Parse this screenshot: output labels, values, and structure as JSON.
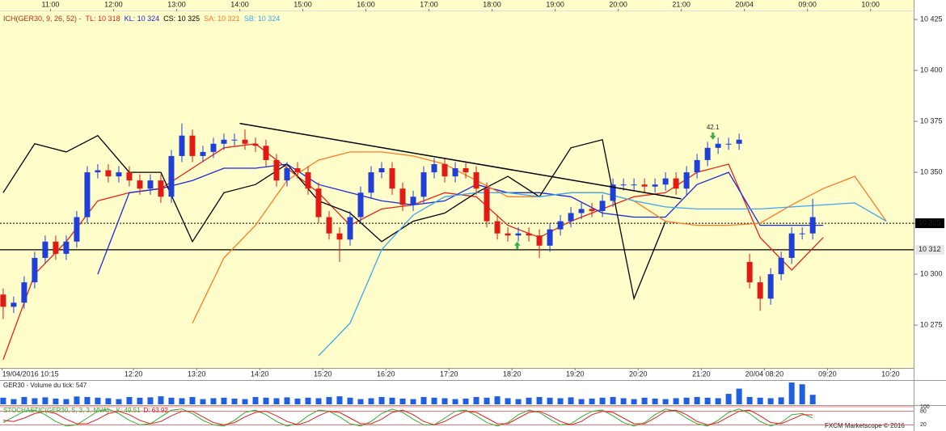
{
  "chart_data": [
    {
      "type": "candlestick",
      "legend_title": "ICH(GER30, 9, 26, 52) -",
      "legend_title_color": "#b03010",
      "up_color": "#1f3fd8",
      "down_color": "#e01a14",
      "open": [
        10290,
        10284,
        10286,
        10296,
        10308,
        10316,
        10310,
        10316,
        10328,
        10350,
        10351,
        10348,
        10350,
        10346,
        10342,
        10346,
        10338,
        10358,
        10368,
        10358,
        10360,
        10364,
        10366,
        10366,
        10364,
        10363,
        10356,
        10346,
        10352,
        10350,
        10342,
        10328,
        10320,
        10317,
        10328,
        10340,
        10350,
        10352,
        10342,
        10334,
        10338,
        10350,
        10354,
        10348,
        10352,
        10350,
        10342,
        10326,
        10320,
        10319,
        10320,
        10319,
        10314,
        10322,
        10326,
        10330,
        10332,
        10331,
        10336,
        10344,
        10344,
        10344,
        10343,
        10344,
        10347,
        10342,
        10350,
        10356,
        10362,
        10364,
        10364,
        10306,
        10296,
        10288,
        10300,
        10308,
        10320,
        10320
      ],
      "high": [
        10293,
        10289,
        10299,
        10311,
        10319,
        10319,
        10319,
        10331,
        10353,
        10354,
        10354,
        10353,
        10353,
        10349,
        10349,
        10349,
        10361,
        10374,
        10371,
        10363,
        10367,
        10369,
        10369,
        10371,
        10367,
        10366,
        10359,
        10355,
        10355,
        10353,
        10345,
        10331,
        10323,
        10331,
        10343,
        10353,
        10355,
        10355,
        10345,
        10341,
        10353,
        10357,
        10357,
        10355,
        10355,
        10353,
        10345,
        10329,
        10323,
        10323,
        10323,
        10322,
        10325,
        10329,
        10333,
        10335,
        10335,
        10339,
        10347,
        10347,
        10347,
        10347,
        10347,
        10350,
        10350,
        10353,
        10359,
        10365,
        10367,
        10367,
        10369,
        10310,
        10299,
        10303,
        10311,
        10323,
        10323,
        10337
      ],
      "low": [
        10278,
        10281,
        10283,
        10293,
        10305,
        10307,
        10307,
        10313,
        10325,
        10347,
        10345,
        10345,
        10343,
        10339,
        10339,
        10335,
        10335,
        10355,
        10355,
        10355,
        10357,
        10361,
        10363,
        10361,
        10360,
        10353,
        10343,
        10343,
        10347,
        10339,
        10325,
        10317,
        10306,
        10314,
        10325,
        10337,
        10347,
        10339,
        10331,
        10331,
        10335,
        10347,
        10345,
        10345,
        10347,
        10339,
        10323,
        10317,
        10316,
        10316,
        10316,
        10308,
        10311,
        10319,
        10323,
        10327,
        10328,
        10328,
        10333,
        10341,
        10341,
        10340,
        10340,
        10341,
        10339,
        10339,
        10347,
        10353,
        10359,
        10361,
        10361,
        10293,
        10282,
        10285,
        10297,
        10305,
        10317,
        10317
      ],
      "close": [
        10284,
        10286,
        10296,
        10308,
        10316,
        10310,
        10316,
        10328,
        10350,
        10351,
        10348,
        10350,
        10346,
        10342,
        10346,
        10338,
        10358,
        10368,
        10358,
        10360,
        10364,
        10366,
        10366,
        10364,
        10363,
        10356,
        10346,
        10352,
        10350,
        10342,
        10328,
        10320,
        10317,
        10328,
        10340,
        10350,
        10352,
        10342,
        10334,
        10338,
        10350,
        10354,
        10348,
        10352,
        10350,
        10342,
        10326,
        10320,
        10319,
        10320,
        10319,
        10314,
        10322,
        10326,
        10330,
        10332,
        10331,
        10336,
        10344,
        10344,
        10344,
        10343,
        10344,
        10347,
        10342,
        10350,
        10356,
        10362,
        10364,
        10364,
        10366,
        10296,
        10288,
        10300,
        10308,
        10320,
        10320,
        10328
      ],
      "series": [
        {
          "name": "TL: 10 318",
          "color": "#e8221c",
          "x": [
            0,
            3,
            6,
            9,
            12,
            15,
            18,
            21,
            24,
            27,
            30,
            33,
            36,
            39,
            42,
            45,
            48,
            51,
            54,
            57,
            60,
            63,
            66,
            69,
            72,
            75,
            78,
            81,
            84
          ],
          "values": [
            10258,
            10300,
            10316,
            10336,
            10340,
            10342,
            10352,
            10362,
            10364,
            10352,
            10340,
            10324,
            10332,
            10334,
            10340,
            10338,
            10324,
            10318,
            10326,
            10332,
            10338,
            10340,
            10350,
            10354,
            10318,
            10302,
            10318,
            null,
            null
          ]
        },
        {
          "name": "KL: 10 324",
          "color": "#1a2ad8",
          "x": [
            0,
            3,
            6,
            9,
            12,
            15,
            18,
            21,
            24,
            27,
            30,
            33,
            36,
            39,
            42,
            45,
            48,
            51,
            54,
            57,
            60,
            63,
            66,
            69,
            72,
            75,
            78,
            81,
            84
          ],
          "values": [
            null,
            null,
            null,
            10300,
            10340,
            10342,
            10346,
            10352,
            10352,
            10354,
            10344,
            10340,
            10336,
            10334,
            10336,
            10344,
            10340,
            10340,
            10338,
            10330,
            10328,
            10328,
            10344,
            10350,
            10324,
            10324,
            10324,
            null,
            null
          ]
        },
        {
          "name": "CS: 10 325",
          "color": "#000000",
          "x": [
            0,
            3,
            6,
            9,
            12,
            15,
            18,
            21,
            24,
            27,
            30,
            33,
            36,
            39,
            42,
            45,
            48,
            51,
            54,
            57,
            60,
            63,
            66,
            69,
            72,
            75,
            78,
            81,
            84
          ],
          "values": [
            10340,
            10364,
            10360,
            10368,
            10350,
            10350,
            10316,
            10340,
            10344,
            10354,
            10336,
            10330,
            10316,
            10326,
            10330,
            10340,
            10348,
            10338,
            10362,
            10366,
            10288,
            10326,
            null,
            null,
            null,
            null,
            null,
            null,
            null
          ]
        },
        {
          "name": "SA: 10 321",
          "color": "#ff7a26",
          "x": [
            0,
            3,
            6,
            9,
            12,
            15,
            18,
            21,
            24,
            27,
            30,
            33,
            36,
            39,
            42,
            45,
            48,
            51,
            54,
            57,
            60,
            63,
            66,
            69,
            72,
            75,
            78,
            81,
            84
          ],
          "values": [
            null,
            null,
            null,
            null,
            null,
            null,
            10276,
            10308,
            10324,
            10346,
            10356,
            10360,
            10360,
            10358,
            10354,
            10346,
            10338,
            10338,
            10340,
            10340,
            10336,
            10326,
            10324,
            10324,
            10325,
            10334,
            10342,
            10348,
            10326
          ]
        },
        {
          "name": "SB: 10 324",
          "color": "#3aa8f0",
          "x": [
            0,
            3,
            6,
            9,
            12,
            15,
            18,
            21,
            24,
            27,
            30,
            33,
            36,
            39,
            42,
            45,
            48,
            51,
            54,
            57,
            60,
            63,
            66,
            69,
            72,
            75,
            78,
            81,
            84
          ],
          "values": [
            null,
            null,
            null,
            null,
            null,
            null,
            null,
            null,
            null,
            null,
            10260,
            10276,
            10312,
            10329,
            10338,
            10340,
            10340,
            10338,
            10340,
            10340,
            10336,
            10333,
            10332,
            10332,
            10332,
            10333,
            10334,
            10335,
            10326
          ]
        }
      ],
      "xlim": [
        -0.3,
        86.6
      ],
      "xticks": [
        {
          "value": 4.5,
          "label": "11:00"
        },
        {
          "value": 10.5,
          "label": "12:00"
        },
        {
          "value": 16.5,
          "label": "13:00"
        },
        {
          "value": 22.5,
          "label": "14:00"
        },
        {
          "value": 28.5,
          "label": "15:00"
        },
        {
          "value": 34.5,
          "label": "16:00"
        },
        {
          "value": 40.5,
          "label": "17:00"
        },
        {
          "value": 46.5,
          "label": "18:00"
        },
        {
          "value": 52.5,
          "label": "19:00"
        },
        {
          "value": 58.5,
          "label": "20:00"
        },
        {
          "value": 64.5,
          "label": "21:00"
        },
        {
          "value": 70.5,
          "label": "20/04"
        },
        {
          "value": 76.5,
          "label": "09:00"
        },
        {
          "value": 82.5,
          "label": "10:00"
        }
      ],
      "bottom_xticks": [
        {
          "value": -0.1,
          "label": "19/04/2016 10:15"
        },
        {
          "value": 12.4,
          "label": "12:20"
        },
        {
          "value": 18.4,
          "label": "13:20"
        },
        {
          "value": 24.4,
          "label": "14:20"
        },
        {
          "value": 30.4,
          "label": "15:20"
        },
        {
          "value": 36.4,
          "label": "16:20"
        },
        {
          "value": 42.4,
          "label": "17:20"
        },
        {
          "value": 48.4,
          "label": "18:20"
        },
        {
          "value": 54.4,
          "label": "19:20"
        },
        {
          "value": 60.4,
          "label": "20:20"
        },
        {
          "value": 66.4,
          "label": "21:20"
        },
        {
          "value": 72.4,
          "label": "20/04 08:20"
        },
        {
          "value": 78.4,
          "label": "09:20"
        },
        {
          "value": 84.4,
          "label": "10:20"
        }
      ],
      "ylim": [
        10254,
        10429
      ],
      "yticks": [
        {
          "value": 10275,
          "label": "10 275"
        },
        {
          "value": 10300,
          "label": "10 300"
        },
        {
          "value": 10325,
          "label": "10 325"
        },
        {
          "value": 10350,
          "label": "10 350"
        },
        {
          "value": 10375,
          "label": "10 375"
        },
        {
          "value": 10400,
          "label": "10 400"
        },
        {
          "value": 10425,
          "label": "10 425"
        }
      ],
      "hlines": [
        {
          "value": 10325,
          "label": "10 325",
          "style": "dotted"
        },
        {
          "value": 10312,
          "label": "10 312",
          "style": "solid"
        }
      ],
      "trendlines": [
        {
          "x": [
            22.5,
            64.5
          ],
          "values": [
            10374,
            10337
          ]
        }
      ],
      "signals": [
        {
          "x": 48.9,
          "y": 10314,
          "direction": "up"
        },
        {
          "x": 67.5,
          "y": 10368,
          "direction": "down",
          "label": "42.1"
        }
      ]
    },
    {
      "type": "bar",
      "title": "GER30 - Volume du tick: 547",
      "color": "#1f5fe0",
      "ylim": [
        0,
        1300
      ],
      "values": [
        380,
        300,
        420,
        350,
        400,
        330,
        300,
        450,
        420,
        380,
        350,
        300,
        420,
        380,
        400,
        460,
        380,
        350,
        420,
        300,
        350,
        380,
        330,
        300,
        420,
        380,
        350,
        400,
        330,
        380,
        350,
        420,
        460,
        380,
        300,
        350,
        420,
        380,
        330,
        300,
        420,
        380,
        350,
        300,
        330,
        420,
        380,
        460,
        350,
        300,
        380,
        420,
        380,
        350,
        400,
        300,
        330,
        380,
        420,
        350,
        300,
        380,
        330,
        300,
        350,
        380,
        420,
        380,
        350,
        600,
        900,
        420,
        380,
        350,
        400,
        1250,
        1150,
        547
      ]
    },
    {
      "type": "line",
      "title": "STOCHASTIC(GER30, 5, 3, 3, MVA) -",
      "title_color": "#2fb02f",
      "ylim": [
        0,
        100
      ],
      "yticks": [
        100,
        80,
        20
      ],
      "tick_color": "#e02020",
      "series": [
        {
          "name": "K: 49.51",
          "color": "#2fb02f",
          "values": [
            30,
            55,
            80,
            85,
            65,
            35,
            15,
            20,
            50,
            80,
            90,
            70,
            40,
            20,
            25,
            55,
            85,
            90,
            70,
            40,
            20,
            15,
            40,
            75,
            85,
            65,
            35,
            15,
            25,
            60,
            85,
            80,
            55,
            25,
            15,
            35,
            70,
            90,
            75,
            45,
            20,
            20,
            50,
            80,
            85,
            60,
            30,
            15,
            30,
            65,
            85,
            75,
            45,
            20,
            25,
            55,
            80,
            85,
            60,
            30,
            15,
            30,
            65,
            90,
            80,
            50,
            25,
            15,
            40,
            75,
            90,
            70,
            35,
            15,
            30,
            65,
            70,
            49.51
          ]
        },
        {
          "name": "D: 63.92",
          "color": "#e02020",
          "values": [
            40,
            35,
            50,
            70,
            80,
            70,
            45,
            25,
            25,
            45,
            70,
            80,
            65,
            40,
            25,
            35,
            60,
            80,
            80,
            55,
            30,
            20,
            30,
            55,
            75,
            80,
            60,
            35,
            20,
            35,
            60,
            80,
            75,
            50,
            25,
            25,
            45,
            75,
            85,
            65,
            35,
            20,
            35,
            60,
            80,
            75,
            50,
            25,
            25,
            50,
            75,
            80,
            60,
            35,
            20,
            35,
            65,
            80,
            75,
            50,
            25,
            25,
            50,
            80,
            85,
            65,
            35,
            20,
            30,
            55,
            80,
            85,
            60,
            30,
            25,
            45,
            65,
            63.92
          ]
        }
      ]
    }
  ],
  "footer": "FXCM Marketscope © 2016"
}
